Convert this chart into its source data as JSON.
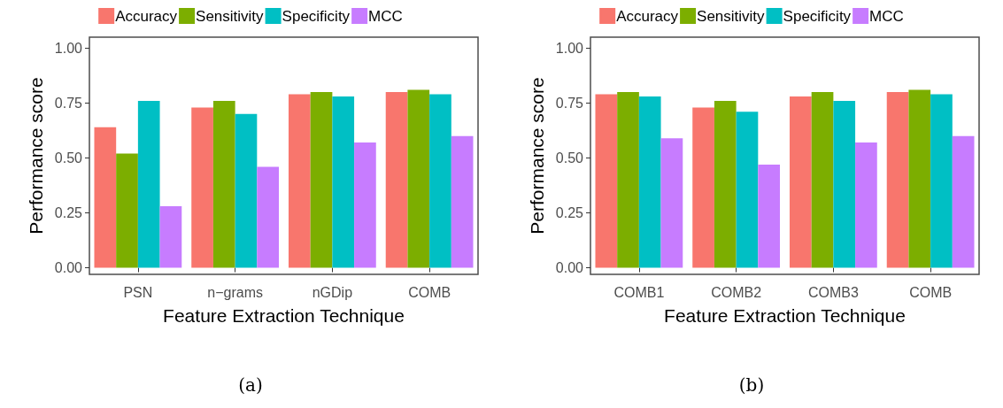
{
  "chart_data": [
    {
      "type": "bar",
      "xlabel": "Feature Extraction Technique",
      "ylabel": "Performance score",
      "categories": [
        "PSN",
        "n−grams",
        "nGDip",
        "COMB"
      ],
      "series": [
        {
          "name": "Accuracy",
          "color": "#f8766d",
          "values": [
            0.64,
            0.73,
            0.79,
            0.8
          ]
        },
        {
          "name": "Sensitivity",
          "color": "#7cae00",
          "values": [
            0.52,
            0.76,
            0.8,
            0.81
          ]
        },
        {
          "name": "Specificity",
          "color": "#00bfc4",
          "values": [
            0.76,
            0.7,
            0.78,
            0.79
          ]
        },
        {
          "name": "MCC",
          "color": "#c77cff",
          "values": [
            0.28,
            0.46,
            0.57,
            0.6
          ]
        }
      ],
      "ylim": [
        -0.03,
        1.05
      ],
      "yticks": [
        {
          "value": 0,
          "label": "0.00"
        },
        {
          "value": 0.25,
          "label": "0.25"
        },
        {
          "value": 0.5,
          "label": "0.50"
        },
        {
          "value": 0.75,
          "label": "0.75"
        },
        {
          "value": 1,
          "label": "1.00"
        }
      ],
      "grid": false,
      "legend": "top",
      "annotations": [
        "(a)"
      ]
    },
    {
      "type": "bar",
      "xlabel": "Feature Extraction Technique",
      "ylabel": "Performance score",
      "categories": [
        "COMB1",
        "COMB2",
        "COMB3",
        "COMB"
      ],
      "series": [
        {
          "name": "Accuracy",
          "color": "#f8766d",
          "values": [
            0.79,
            0.73,
            0.78,
            0.8
          ]
        },
        {
          "name": "Sensitivity",
          "color": "#7cae00",
          "values": [
            0.8,
            0.76,
            0.8,
            0.81
          ]
        },
        {
          "name": "Specificity",
          "color": "#00bfc4",
          "values": [
            0.78,
            0.71,
            0.76,
            0.79
          ]
        },
        {
          "name": "MCC",
          "color": "#c77cff",
          "values": [
            0.59,
            0.47,
            0.57,
            0.6
          ]
        }
      ],
      "ylim": [
        -0.03,
        1.05
      ],
      "yticks": [
        {
          "value": 0,
          "label": "0.00"
        },
        {
          "value": 0.25,
          "label": "0.25"
        },
        {
          "value": 0.5,
          "label": "0.50"
        },
        {
          "value": 0.75,
          "label": "0.75"
        },
        {
          "value": 1,
          "label": "1.00"
        }
      ],
      "grid": false,
      "legend": "top",
      "annotations": [
        "(b)"
      ]
    }
  ]
}
